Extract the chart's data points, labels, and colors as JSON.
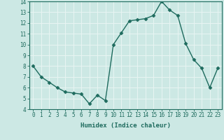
{
  "x": [
    0,
    1,
    2,
    3,
    4,
    5,
    6,
    7,
    8,
    9,
    10,
    11,
    12,
    13,
    14,
    15,
    16,
    17,
    18,
    19,
    20,
    21,
    22,
    23
  ],
  "y": [
    8.0,
    7.0,
    6.5,
    6.0,
    5.6,
    5.5,
    5.4,
    4.5,
    5.3,
    4.8,
    10.0,
    11.1,
    12.2,
    12.3,
    12.4,
    12.7,
    14.0,
    13.2,
    12.7,
    10.1,
    8.6,
    7.8,
    6.0,
    7.8
  ],
  "line_color": "#1e6b5e",
  "marker": "D",
  "marker_size": 2.5,
  "bg_color": "#cce8e4",
  "grid_color": "#e8f5f3",
  "tick_color": "#1e6b5e",
  "xlabel": "Humidex (Indice chaleur)",
  "ylim": [
    4,
    14
  ],
  "xlim": [
    -0.5,
    23.5
  ],
  "yticks": [
    4,
    5,
    6,
    7,
    8,
    9,
    10,
    11,
    12,
    13,
    14
  ],
  "xticks": [
    0,
    1,
    2,
    3,
    4,
    5,
    6,
    7,
    8,
    9,
    10,
    11,
    12,
    13,
    14,
    15,
    16,
    17,
    18,
    19,
    20,
    21,
    22,
    23
  ],
  "xlabel_fontsize": 6.5,
  "tick_fontsize": 5.5,
  "line_width": 1.0
}
